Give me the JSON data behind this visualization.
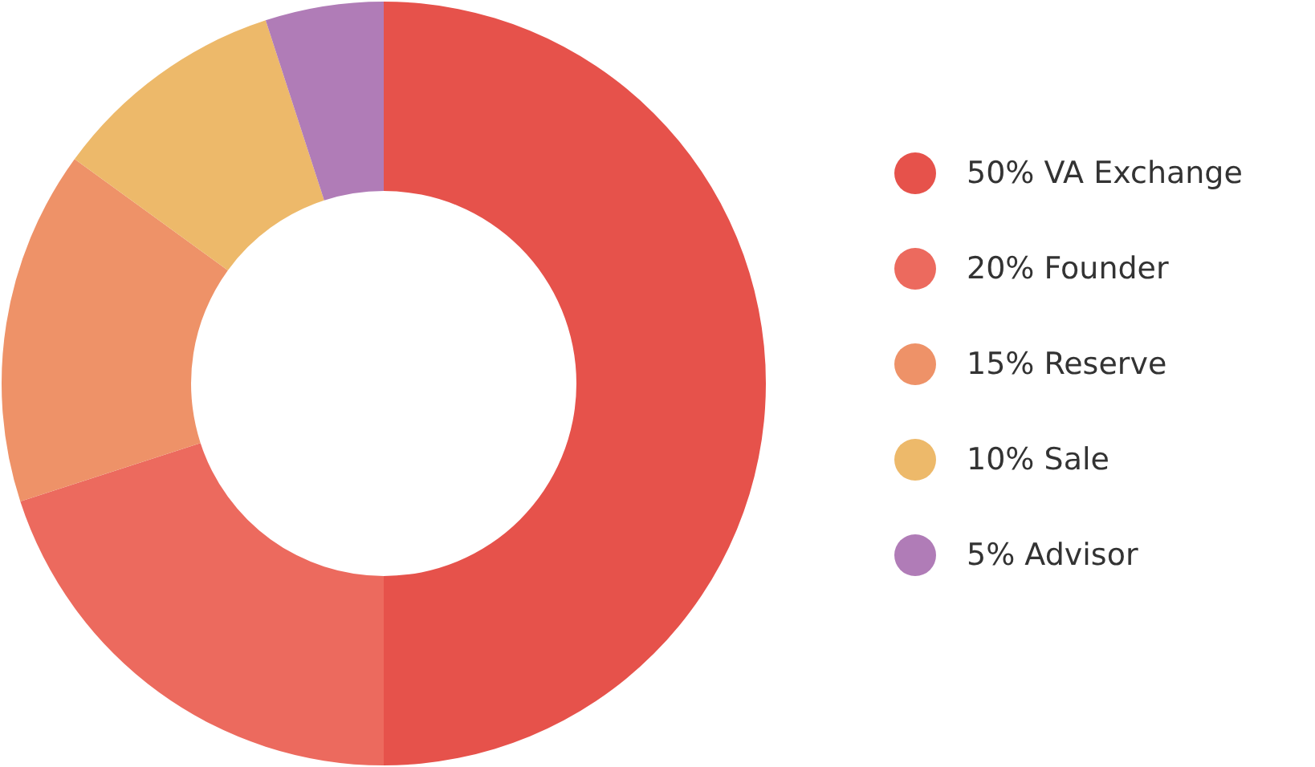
{
  "chart_data": {
    "type": "donut",
    "categories": [
      "50% VA Exchange",
      "20% Founder",
      "15% Reserve",
      "10% Sale",
      "5% Advisor"
    ],
    "values": [
      50,
      20,
      15,
      10,
      5
    ],
    "colors": [
      "#e6524b",
      "#ec6a5e",
      "#ee9268",
      "#edb96a",
      "#b07cb7"
    ],
    "legend": "right"
  }
}
